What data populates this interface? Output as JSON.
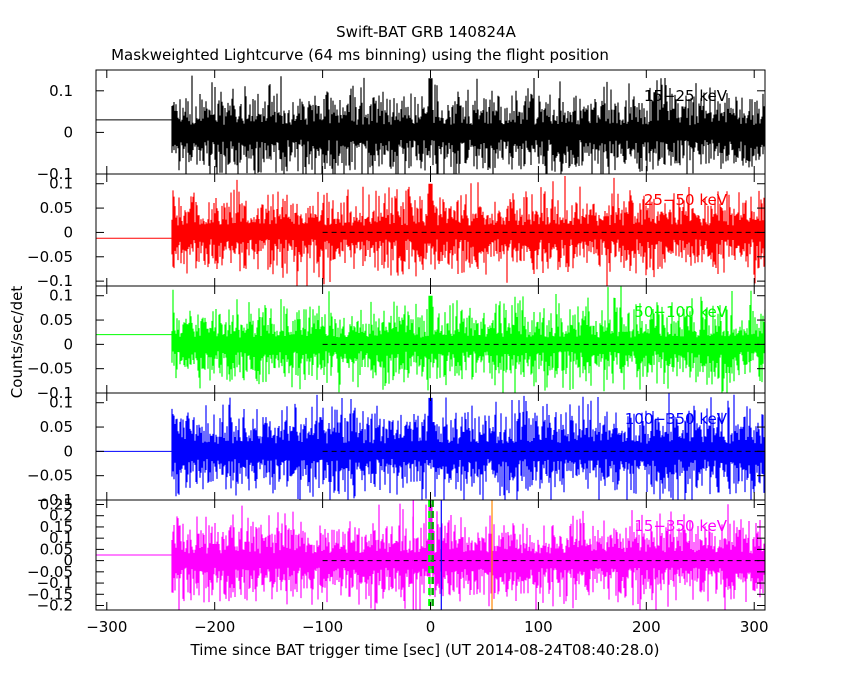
{
  "title": "Swift-BAT GRB 140824A",
  "subtitle": "Maskweighted Lightcurve (64 ms binning) using the flight position",
  "xlabel": "Time since BAT trigger time [sec] (UT 2014-08-24T08:40:28.0)",
  "ylabel": "Counts/sec/det",
  "chart_data": {
    "type": "line",
    "title": "Swift-BAT GRB 140824A",
    "subtitle": "Maskweighted Lightcurve (64 ms binning) using the flight position",
    "xlabel": "Time since BAT trigger time [sec] (UT 2014-08-24T08:40:28.0)",
    "ylabel": "Counts/sec/det",
    "xlim": [
      -310,
      310
    ],
    "x_ticks": [
      -300,
      -200,
      -100,
      0,
      100,
      200,
      300
    ],
    "x_tick_labels": [
      "−300",
      "−200",
      "−100",
      "0",
      "100",
      "200",
      "300"
    ],
    "data_start": -240,
    "bin_size_s": 0.064,
    "panels": [
      {
        "name": "15−25 keV",
        "color": "#000000",
        "ylim": [
          -0.1,
          0.15
        ],
        "y_ticks": [
          -0.1,
          0,
          0.1
        ],
        "y_tick_labels": [
          "−0.1",
          "0",
          "0.1"
        ],
        "noise_amplitude": 0.05,
        "pre_level": 0.03,
        "zero_line": false,
        "peak": 0.13
      },
      {
        "name": "25−50 keV",
        "color": "#ff0000",
        "ylim": [
          -0.11,
          0.12
        ],
        "y_ticks": [
          -0.1,
          -0.05,
          0,
          0.05,
          0.1
        ],
        "y_tick_labels": [
          "−0.1",
          "−0.05",
          "0",
          "0.05",
          "0.1"
        ],
        "noise_amplitude": 0.04,
        "pre_level": -0.012,
        "zero_line": true,
        "peak": 0.1
      },
      {
        "name": "50−100 keV",
        "color": "#00ff00",
        "ylim": [
          -0.1,
          0.12
        ],
        "y_ticks": [
          -0.1,
          -0.05,
          0,
          0.05,
          0.1
        ],
        "y_tick_labels": [
          "−0.1",
          "−0.05",
          "0",
          "0.05",
          "0.1"
        ],
        "noise_amplitude": 0.04,
        "pre_level": 0.02,
        "zero_line": true,
        "peak": 0.1
      },
      {
        "name": "100−350 keV",
        "color": "#0000ff",
        "ylim": [
          -0.1,
          0.12
        ],
        "y_ticks": [
          -0.1,
          -0.05,
          0,
          0.05,
          0.1
        ],
        "y_tick_labels": [
          "−0.1",
          "−0.05",
          "0",
          "0.05",
          "0.1"
        ],
        "noise_amplitude": 0.045,
        "pre_level": 0.0,
        "zero_line": true,
        "peak": 0.11
      },
      {
        "name": "15−350 keV",
        "color": "#ff00ff",
        "ylim": [
          -0.22,
          0.27
        ],
        "y_ticks": [
          -0.2,
          -0.15,
          -0.1,
          -0.05,
          0,
          0.05,
          0.1,
          0.15,
          0.2,
          0.25
        ],
        "y_tick_labels": [
          "−0.2",
          "−0.15",
          "−0.1",
          "−0.05",
          "0",
          "0.05",
          "0.1",
          "0.15",
          "0.2",
          "0.25"
        ],
        "noise_amplitude": 0.09,
        "pre_level": 0.025,
        "zero_line": true,
        "peak": 0.25
      }
    ],
    "markers": [
      {
        "x": -16,
        "color": "#ff00ff",
        "style": "solid"
      },
      {
        "x": -1,
        "color": "#00ff00",
        "style": "dashed"
      },
      {
        "x": 2,
        "color": "#00aa00",
        "style": "dashed"
      },
      {
        "x": 10,
        "color": "#0000ff",
        "style": "solid"
      },
      {
        "x": 57,
        "color": "#ff8800",
        "style": "solid"
      }
    ],
    "grid": false,
    "legend": "none"
  }
}
